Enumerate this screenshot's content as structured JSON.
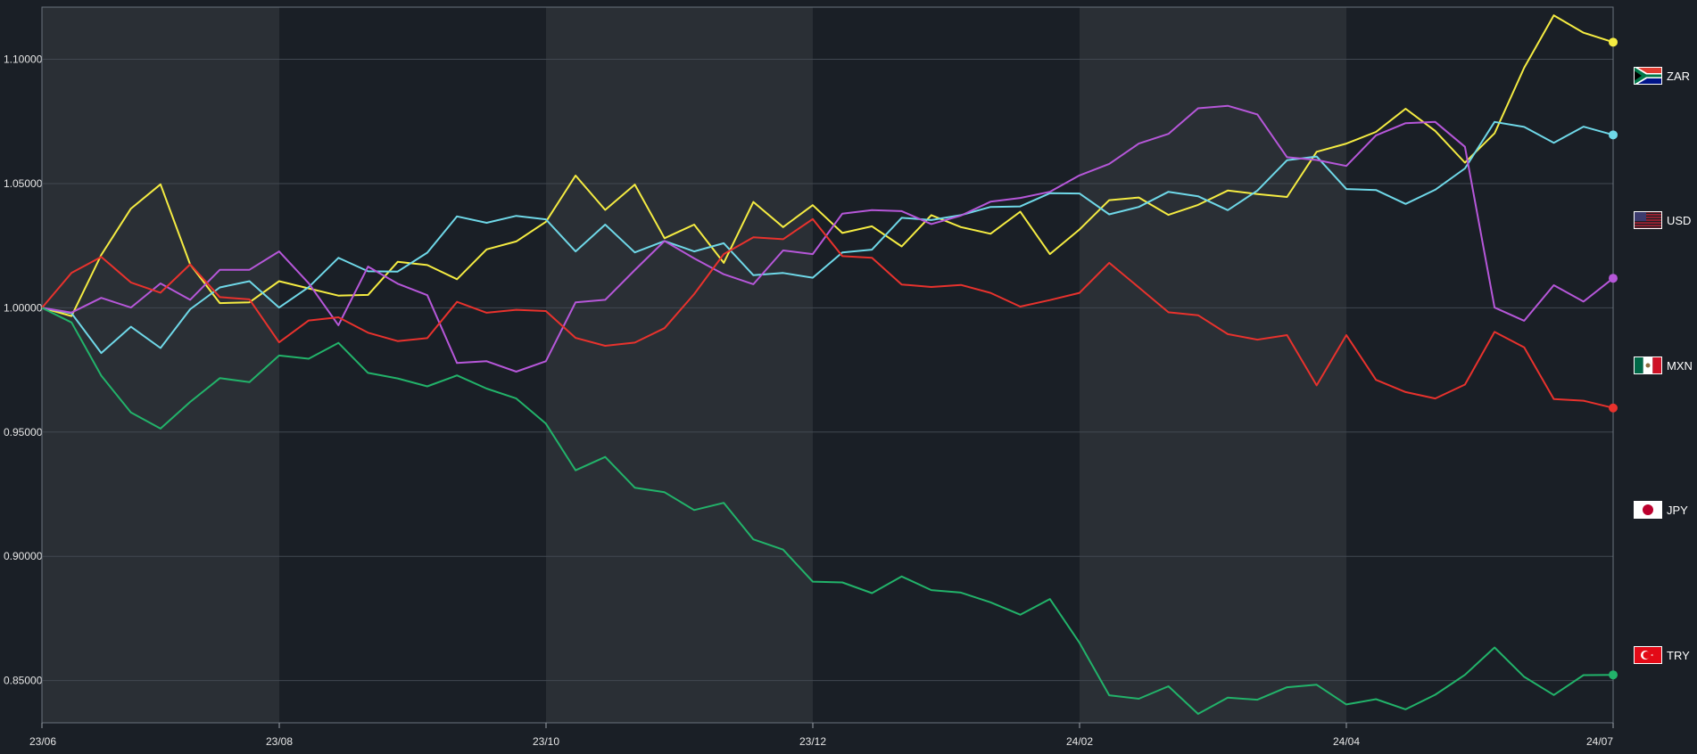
{
  "chart_data": {
    "type": "line",
    "title": "",
    "xlabel": "",
    "ylabel": "",
    "y_ticks": [
      "1.10000",
      "1.05000",
      "1.00000",
      "0.95000",
      "0.90000",
      "0.85000"
    ],
    "x_ticks": [
      "23/06",
      "23/08",
      "23/10",
      "23/12",
      "24/02",
      "24/04",
      "24/07"
    ],
    "ylim": [
      0.833,
      1.121
    ],
    "grid": true,
    "legend_placement": "right",
    "series": [
      {
        "name": "ZAR",
        "color": "#f5ec42",
        "flag_icon": "south-africa-flag-icon",
        "values": [
          1.0,
          0.9967,
          1.0213,
          1.0399,
          1.0497,
          1.0175,
          1.0019,
          1.0022,
          1.0107,
          1.0078,
          1.0049,
          1.0052,
          1.0185,
          1.0172,
          1.0115,
          1.0235,
          1.0267,
          1.0346,
          1.0532,
          1.0394,
          1.0496,
          1.028,
          1.0335,
          1.0181,
          1.0426,
          1.0325,
          1.0413,
          1.0301,
          1.0328,
          1.0247,
          1.0373,
          1.0325,
          1.0298,
          1.0387,
          1.0216,
          1.0315,
          1.0433,
          1.0444,
          1.0374,
          1.0414,
          1.0472,
          1.0458,
          1.0446,
          1.0628,
          1.0661,
          1.0708,
          1.0801,
          1.0712,
          1.0584,
          1.0702,
          1.0966,
          1.1177,
          1.1107,
          1.1069
        ]
      },
      {
        "name": "USD",
        "color": "#6fd8e8",
        "flag_icon": "usa-flag-icon",
        "values": [
          1.0,
          0.9978,
          0.9818,
          0.9924,
          0.9838,
          0.9994,
          1.0082,
          1.0107,
          1.0001,
          1.0083,
          1.0201,
          1.0147,
          1.0146,
          1.0222,
          1.0368,
          1.0342,
          1.037,
          1.0356,
          1.0227,
          1.0335,
          1.0223,
          1.0269,
          1.0227,
          1.026,
          1.0131,
          1.014,
          1.0121,
          1.0223,
          1.0234,
          1.0362,
          1.0353,
          1.0373,
          1.0406,
          1.0408,
          1.0461,
          1.046,
          1.0376,
          1.0406,
          1.0467,
          1.0449,
          1.0393,
          1.0472,
          1.0594,
          1.0609,
          1.0478,
          1.0474,
          1.0418,
          1.0475,
          1.0561,
          1.0748,
          1.0728,
          1.0664,
          1.0729,
          1.0696
        ]
      },
      {
        "name": "MXN",
        "color": "#b657d9",
        "flag_icon": "mexico-flag-icon",
        "values": [
          1.0,
          0.9981,
          1.004,
          1.0001,
          1.0098,
          1.0032,
          1.0153,
          1.0153,
          1.0227,
          1.0099,
          0.993,
          1.0166,
          1.0097,
          1.0051,
          0.9778,
          0.9785,
          0.9743,
          0.9785,
          1.0022,
          1.0032,
          1.0152,
          1.0269,
          1.0199,
          1.0135,
          1.0095,
          1.0231,
          1.0216,
          1.0379,
          1.0393,
          1.0389,
          1.0337,
          1.0371,
          1.0427,
          1.0442,
          1.0467,
          1.0533,
          1.0579,
          1.0661,
          1.07,
          1.0803,
          1.0813,
          1.0778,
          1.0606,
          1.0595,
          1.0571,
          1.0694,
          1.0743,
          1.0748,
          1.0648,
          1.0001,
          0.9948,
          1.0091,
          1.0025,
          1.0119
        ]
      },
      {
        "name": "JPY",
        "color": "#e8322d",
        "flag_icon": "japan-flag-icon",
        "values": [
          1.0,
          1.0141,
          1.0205,
          1.0102,
          1.0061,
          1.0175,
          1.0043,
          1.0034,
          0.9861,
          0.9949,
          0.9962,
          0.99,
          0.9866,
          0.9878,
          1.0024,
          0.998,
          0.9992,
          0.9987,
          0.9879,
          0.9847,
          0.986,
          0.9918,
          1.0055,
          1.0216,
          1.0284,
          1.0276,
          1.0357,
          1.0208,
          1.0201,
          1.0094,
          1.0084,
          1.0092,
          1.006,
          1.0005,
          1.0031,
          1.006,
          1.0181,
          1.0082,
          0.9982,
          0.997,
          0.9894,
          0.9872,
          0.989,
          0.9688,
          0.989,
          0.971,
          0.9661,
          0.9635,
          0.9691,
          0.9903,
          0.9841,
          0.9633,
          0.9626,
          0.9597
        ]
      },
      {
        "name": "TRY",
        "color": "#22b36a",
        "flag_icon": "turkey-flag-icon",
        "values": [
          1.0,
          0.9941,
          0.9727,
          0.9579,
          0.9514,
          0.9621,
          0.9717,
          0.9701,
          0.9808,
          0.9795,
          0.9859,
          0.9738,
          0.9716,
          0.9684,
          0.9728,
          0.9675,
          0.9635,
          0.9534,
          0.9346,
          0.94,
          0.9276,
          0.9258,
          0.9186,
          0.9215,
          0.9068,
          0.9027,
          0.8898,
          0.8895,
          0.8852,
          0.8919,
          0.8864,
          0.8854,
          0.8815,
          0.8765,
          0.8828,
          0.8652,
          0.8441,
          0.8427,
          0.8477,
          0.8366,
          0.8431,
          0.8423,
          0.8473,
          0.8483,
          0.8404,
          0.8425,
          0.8384,
          0.8443,
          0.8523,
          0.8633,
          0.8515,
          0.8442,
          0.8522,
          0.8523
        ]
      }
    ]
  }
}
